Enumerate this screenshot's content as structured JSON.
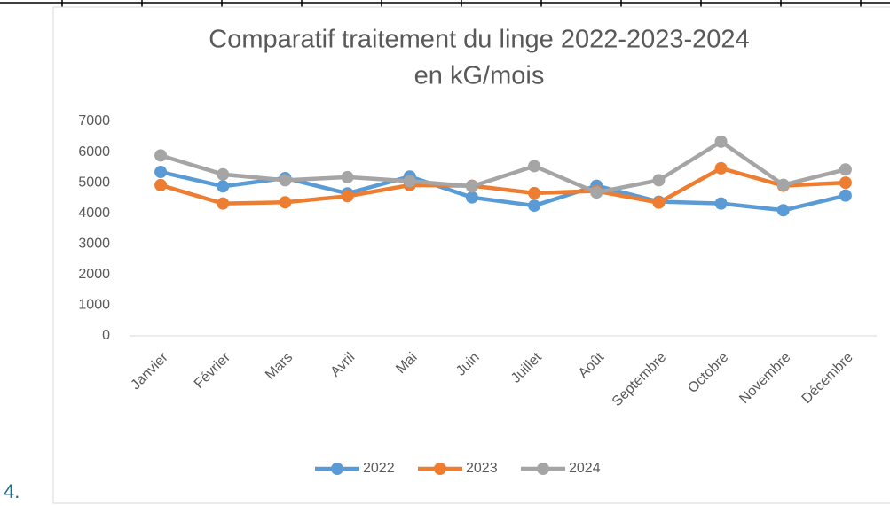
{
  "list_marker": "4.",
  "chart_data": {
    "type": "line",
    "title": [
      "Comparatif traitement du linge  2022-2023-2024",
      "en kG/mois"
    ],
    "categories": [
      "Janvier",
      "Février",
      "Mars",
      "Avril",
      "Mai",
      "Juin",
      "Juillet",
      "Août",
      "Septembre",
      "Octobre",
      "Novembre",
      "Décembre"
    ],
    "series": [
      {
        "name": "2022",
        "color": "#5b9bd5",
        "values": [
          5350,
          4880,
          5150,
          4650,
          5200,
          4520,
          4250,
          4900,
          4380,
          4320,
          4100,
          4580
        ]
      },
      {
        "name": "2023",
        "color": "#ed7d31",
        "values": [
          4920,
          4320,
          4360,
          4560,
          4920,
          4900,
          4660,
          4730,
          4350,
          5470,
          4900,
          5000
        ]
      },
      {
        "name": "2024",
        "color": "#a5a5a5",
        "values": [
          5890,
          5270,
          5080,
          5180,
          5050,
          4880,
          5540,
          4680,
          5080,
          6340,
          4930,
          5430
        ]
      }
    ],
    "ylim": [
      0,
      7000
    ],
    "yticks": [
      0,
      1000,
      2000,
      3000,
      4000,
      5000,
      6000,
      7000
    ],
    "grid": false,
    "legend": "bottom"
  }
}
